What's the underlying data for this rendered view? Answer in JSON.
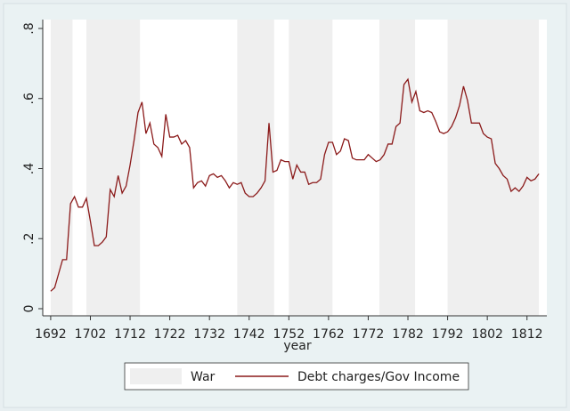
{
  "chart_data": {
    "type": "line",
    "x_label": "year",
    "xlim": [
      1690,
      1817
    ],
    "ylim": [
      0,
      0.8
    ],
    "xticks": [
      1692,
      1702,
      1712,
      1722,
      1732,
      1742,
      1752,
      1762,
      1772,
      1782,
      1792,
      1802,
      1812
    ],
    "yticks": [
      0,
      {
        "value": 0.2,
        "label": ".2"
      },
      {
        "value": 0.4,
        "label": ".4"
      },
      {
        "value": 0.6,
        "label": ".6"
      },
      {
        "value": 0.8,
        "label": ".8"
      }
    ],
    "shaded": {
      "name": "War",
      "color": "#efefef",
      "ranges": [
        [
          1692,
          1697.5
        ],
        [
          1701,
          1714.5
        ],
        [
          1739,
          1748.3
        ],
        [
          1752,
          1763
        ],
        [
          1774.8,
          1783.8
        ],
        [
          1792,
          1815
        ]
      ]
    },
    "x": [
      1692,
      1693,
      1694,
      1695,
      1696,
      1697,
      1698,
      1699,
      1700,
      1701,
      1702,
      1703,
      1704,
      1705,
      1706,
      1707,
      1708,
      1709,
      1710,
      1711,
      1712,
      1713,
      1714,
      1715,
      1716,
      1717,
      1718,
      1719,
      1720,
      1721,
      1722,
      1723,
      1724,
      1725,
      1726,
      1727,
      1728,
      1729,
      1730,
      1731,
      1732,
      1733,
      1734,
      1735,
      1736,
      1737,
      1738,
      1739,
      1740,
      1741,
      1742,
      1743,
      1744,
      1745,
      1746,
      1747,
      1748,
      1749,
      1750,
      1751,
      1752,
      1753,
      1754,
      1755,
      1756,
      1757,
      1758,
      1759,
      1760,
      1761,
      1762,
      1763,
      1764,
      1765,
      1766,
      1767,
      1768,
      1769,
      1770,
      1771,
      1772,
      1773,
      1774,
      1775,
      1776,
      1777,
      1778,
      1779,
      1780,
      1781,
      1782,
      1783,
      1784,
      1785,
      1786,
      1787,
      1788,
      1789,
      1790,
      1791,
      1792,
      1793,
      1794,
      1795,
      1796,
      1797,
      1798,
      1799,
      1800,
      1801,
      1802,
      1803,
      1804,
      1805,
      1806,
      1807,
      1808,
      1809,
      1810,
      1811,
      1812,
      1813,
      1814,
      1815
    ],
    "series": [
      {
        "name": "Debt charges/Gov Income",
        "color": "#8b1a1a",
        "values": [
          0.05,
          0.06,
          0.1,
          0.14,
          0.14,
          0.3,
          0.32,
          0.29,
          0.29,
          0.315,
          0.25,
          0.18,
          0.18,
          0.19,
          0.205,
          0.34,
          0.32,
          0.38,
          0.33,
          0.35,
          0.41,
          0.48,
          0.56,
          0.59,
          0.5,
          0.53,
          0.47,
          0.46,
          0.435,
          0.555,
          0.49,
          0.49,
          0.495,
          0.47,
          0.48,
          0.46,
          0.345,
          0.36,
          0.365,
          0.35,
          0.38,
          0.385,
          0.375,
          0.38,
          0.365,
          0.345,
          0.36,
          0.355,
          0.36,
          0.33,
          0.32,
          0.32,
          0.33,
          0.345,
          0.365,
          0.53,
          0.39,
          0.395,
          0.425,
          0.42,
          0.42,
          0.37,
          0.41,
          0.39,
          0.39,
          0.355,
          0.36,
          0.36,
          0.37,
          0.44,
          0.475,
          0.475,
          0.44,
          0.45,
          0.485,
          0.48,
          0.43,
          0.425,
          0.425,
          0.425,
          0.44,
          0.43,
          0.42,
          0.425,
          0.44,
          0.47,
          0.47,
          0.52,
          0.53,
          0.64,
          0.655,
          0.59,
          0.62,
          0.565,
          0.56,
          0.565,
          0.56,
          0.535,
          0.505,
          0.5,
          0.505,
          0.52,
          0.545,
          0.58,
          0.635,
          0.595,
          0.53,
          0.53,
          0.53,
          0.5,
          0.49,
          0.485,
          0.415,
          0.4,
          0.38,
          0.37,
          0.335,
          0.345,
          0.335,
          0.35,
          0.375,
          0.365,
          0.37,
          0.385
        ]
      }
    ]
  }
}
